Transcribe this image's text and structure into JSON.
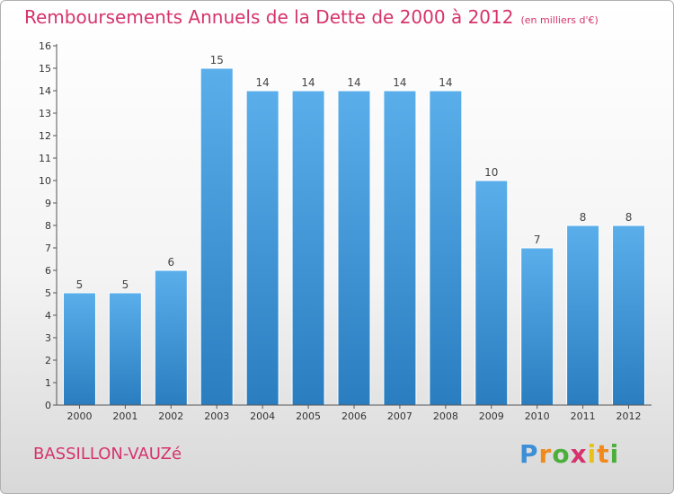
{
  "header": {
    "title": "Remboursements Annuels de la Dette de 2000 à 2012",
    "unit": "(en milliers d'€)"
  },
  "footer": {
    "place": "BASSILLON-VAUZé",
    "logo": "Proxiti"
  },
  "colors": {
    "title": "#d6336c",
    "bar_top": "#5aaeea",
    "bar_bottom": "#2a7ec0"
  },
  "chart_data": {
    "type": "bar",
    "title": "Remboursements Annuels de la Dette de 2000 à 2012",
    "subtitle": "(en milliers d'€)",
    "xlabel": "",
    "ylabel": "",
    "categories": [
      "2000",
      "2001",
      "2002",
      "2003",
      "2004",
      "2005",
      "2006",
      "2007",
      "2008",
      "2009",
      "2010",
      "2011",
      "2012"
    ],
    "values": [
      5,
      5,
      6,
      15,
      14,
      14,
      14,
      14,
      14,
      10,
      7,
      8,
      8
    ],
    "ylim": [
      0,
      16
    ],
    "yticks": [
      0,
      1,
      2,
      3,
      4,
      5,
      6,
      7,
      8,
      9,
      10,
      11,
      12,
      13,
      14,
      15,
      16
    ],
    "grid": false,
    "legend": "none"
  }
}
